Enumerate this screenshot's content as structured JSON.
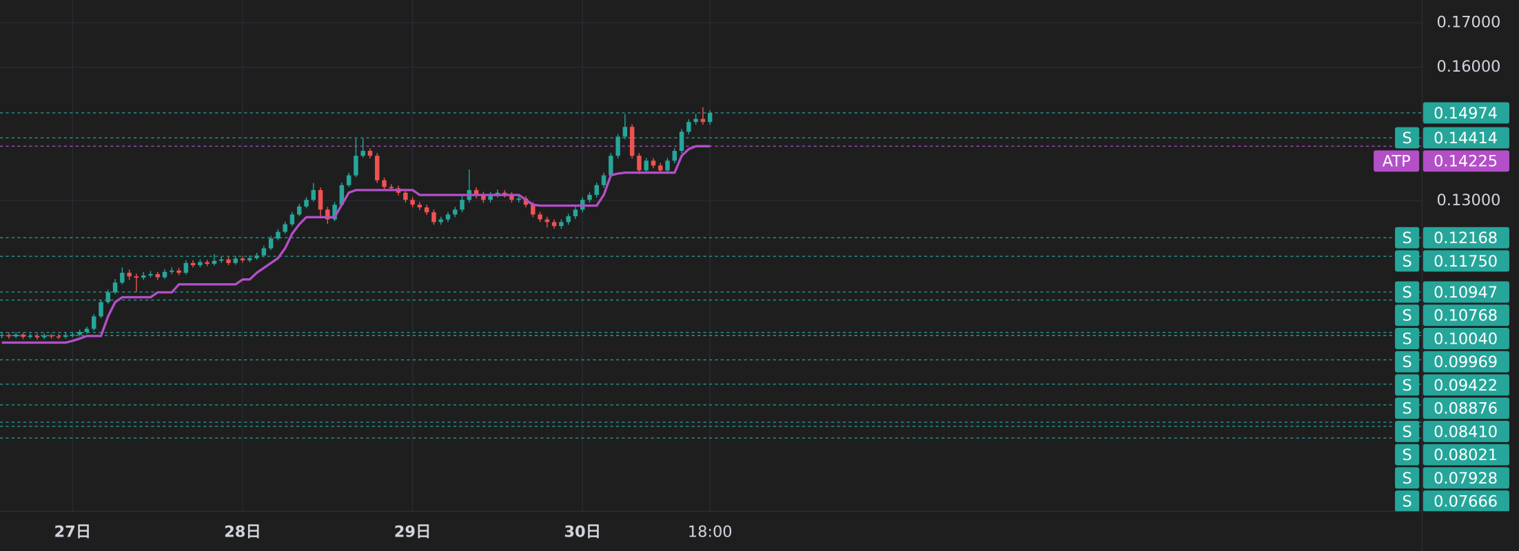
{
  "chart_data": {
    "type": "candlestick",
    "categories": [
      null,
      null,
      null,
      null,
      null,
      null,
      null,
      null,
      null,
      null,
      "27日",
      null,
      null,
      null,
      null,
      null,
      null,
      null,
      null,
      null,
      null,
      null,
      null,
      null,
      null,
      null,
      null,
      null,
      null,
      null,
      null,
      null,
      null,
      null,
      "28日",
      null,
      null,
      null,
      null,
      null,
      null,
      null,
      null,
      null,
      null,
      null,
      null,
      null,
      null,
      null,
      null,
      null,
      null,
      null,
      null,
      null,
      null,
      null,
      "29日",
      null,
      null,
      null,
      null,
      null,
      null,
      null,
      null,
      null,
      null,
      null,
      null,
      null,
      null,
      null,
      null,
      null,
      null,
      null,
      null,
      null,
      null,
      null,
      "30日",
      null,
      null,
      null,
      null,
      null,
      null,
      null,
      null,
      null,
      null,
      null,
      null,
      null,
      null,
      null,
      null,
      null,
      "18:00"
    ],
    "open": [
      0.0996,
      0.0998,
      0.0995,
      0.0999,
      0.0994,
      0.0996,
      0.0993,
      0.0997,
      0.0995,
      0.0994,
      0.0998,
      0.0999,
      0.1005,
      0.1012,
      0.104,
      0.1072,
      0.1094,
      0.1116,
      0.1138,
      0.113,
      0.1127,
      0.1132,
      0.1135,
      0.1128,
      0.114,
      0.1143,
      0.1138,
      0.116,
      0.1155,
      0.1162,
      0.1158,
      0.1165,
      0.1168,
      0.116,
      0.117,
      0.1166,
      0.1171,
      0.1177,
      0.1193,
      0.1215,
      0.123,
      0.1247,
      0.1269,
      0.1287,
      0.1302,
      0.1324,
      0.128,
      0.1258,
      0.1291,
      0.1335,
      0.1357,
      0.1401,
      0.1412,
      0.1401,
      0.1346,
      0.1331,
      0.1328,
      0.1318,
      0.1302,
      0.1291,
      0.1285,
      0.1274,
      0.1252,
      0.1258,
      0.1269,
      0.128,
      0.1302,
      0.1324,
      0.1313,
      0.1302,
      0.1313,
      0.1318,
      0.1313,
      0.1302,
      0.1305,
      0.1291,
      0.1269,
      0.1258,
      0.1252,
      0.1243,
      0.1252,
      0.1265,
      0.128,
      0.1302,
      0.1313,
      0.1335,
      0.1357,
      0.1401,
      0.1444,
      0.1466,
      0.1401,
      0.1368,
      0.139,
      0.1379,
      0.1368,
      0.139,
      0.1412,
      0.1455,
      0.1477,
      0.1484,
      0.1477
    ],
    "high": [
      0.1004,
      0.1003,
      0.1004,
      0.1003,
      0.1001,
      0.1001,
      0.1002,
      0.1001,
      0.1,
      0.1003,
      0.1004,
      0.101,
      0.1017,
      0.1045,
      0.1078,
      0.11,
      0.1124,
      0.115,
      0.1145,
      0.1136,
      0.114,
      0.1142,
      0.114,
      0.1146,
      0.115,
      0.1149,
      0.1166,
      0.1166,
      0.1168,
      0.1167,
      0.118,
      0.1175,
      0.1174,
      0.1176,
      0.1175,
      0.1177,
      0.1183,
      0.1199,
      0.1221,
      0.1236,
      0.1253,
      0.1275,
      0.1293,
      0.1308,
      0.134,
      0.133,
      0.1286,
      0.1297,
      0.1341,
      0.1363,
      0.144,
      0.144,
      0.1418,
      0.1407,
      0.1352,
      0.1337,
      0.1334,
      0.1324,
      0.1308,
      0.1297,
      0.1291,
      0.128,
      0.1264,
      0.1275,
      0.1286,
      0.1315,
      0.137,
      0.133,
      0.132,
      0.132,
      0.1325,
      0.1324,
      0.1319,
      0.1311,
      0.1311,
      0.1297,
      0.1275,
      0.1264,
      0.1258,
      0.1258,
      0.1271,
      0.1286,
      0.1308,
      0.1319,
      0.1341,
      0.1363,
      0.1407,
      0.145,
      0.1495,
      0.1472,
      0.1407,
      0.1396,
      0.1396,
      0.1385,
      0.1396,
      0.1418,
      0.1461,
      0.1483,
      0.1495,
      0.151,
      0.1503
    ],
    "low": [
      0.0991,
      0.099,
      0.0991,
      0.0989,
      0.099,
      0.0988,
      0.0989,
      0.099,
      0.0989,
      0.099,
      0.0993,
      0.0995,
      0.1001,
      0.1008,
      0.1036,
      0.1068,
      0.109,
      0.1112,
      0.1122,
      0.1095,
      0.1122,
      0.1127,
      0.1122,
      0.1124,
      0.1135,
      0.1133,
      0.1134,
      0.115,
      0.115,
      0.1153,
      0.1154,
      0.116,
      0.1155,
      0.1156,
      0.1161,
      0.1162,
      0.1167,
      0.1173,
      0.1189,
      0.1211,
      0.1226,
      0.1243,
      0.1265,
      0.1283,
      0.1298,
      0.126,
      0.1248,
      0.1254,
      0.1287,
      0.1331,
      0.1353,
      0.1397,
      0.1395,
      0.134,
      0.1325,
      0.1322,
      0.1312,
      0.1296,
      0.1285,
      0.1279,
      0.1268,
      0.1246,
      0.1246,
      0.1252,
      0.1263,
      0.1274,
      0.1296,
      0.1305,
      0.1295,
      0.1296,
      0.1307,
      0.1307,
      0.1296,
      0.1296,
      0.1285,
      0.1263,
      0.1252,
      0.124,
      0.1237,
      0.1237,
      0.1246,
      0.1259,
      0.1274,
      0.1296,
      0.1307,
      0.1329,
      0.1351,
      0.1395,
      0.1438,
      0.1395,
      0.136,
      0.1362,
      0.1373,
      0.1362,
      0.1362,
      0.1384,
      0.1406,
      0.1449,
      0.1471,
      0.1471,
      0.1471
    ],
    "close": [
      0.0998,
      0.0995,
      0.0999,
      0.0994,
      0.0996,
      0.0993,
      0.0997,
      0.0995,
      0.0994,
      0.0998,
      0.0999,
      0.1005,
      0.1012,
      0.104,
      0.1072,
      0.1094,
      0.1116,
      0.1138,
      0.113,
      0.1127,
      0.1132,
      0.1135,
      0.1128,
      0.114,
      0.1143,
      0.1138,
      0.116,
      0.1155,
      0.1162,
      0.1158,
      0.1165,
      0.1168,
      0.116,
      0.117,
      0.1166,
      0.1171,
      0.1177,
      0.1193,
      0.1215,
      0.123,
      0.1247,
      0.1269,
      0.1287,
      0.1302,
      0.1324,
      0.128,
      0.1258,
      0.1291,
      0.1335,
      0.1357,
      0.1401,
      0.1412,
      0.1401,
      0.1346,
      0.1331,
      0.1328,
      0.1318,
      0.1302,
      0.1291,
      0.1285,
      0.1274,
      0.1252,
      0.1258,
      0.1269,
      0.128,
      0.1302,
      0.1324,
      0.1313,
      0.1302,
      0.1313,
      0.1318,
      0.1313,
      0.1302,
      0.1305,
      0.1291,
      0.1269,
      0.1258,
      0.1252,
      0.1243,
      0.1252,
      0.1265,
      0.128,
      0.1302,
      0.1313,
      0.1335,
      0.1357,
      0.1401,
      0.1444,
      0.1466,
      0.1401,
      0.1368,
      0.139,
      0.1379,
      0.1368,
      0.139,
      0.1412,
      0.1455,
      0.1477,
      0.1484,
      0.1477,
      0.14974
    ],
    "up_color": "#26a69a",
    "down_color": "#ef5350",
    "ylim": [
      0.0602,
      0.1751
    ],
    "yticks": [
      {
        "value": 0.17,
        "label": "0.17000"
      },
      {
        "value": 0.16,
        "label": "0.16000"
      },
      {
        "value": 0.13,
        "label": "0.13000"
      }
    ],
    "grid": true,
    "lines": [
      {
        "name": "ATP",
        "color": "#b44fc8",
        "value_label": "0.14225",
        "values": [
          0.0981,
          0.0981,
          0.0981,
          0.0981,
          0.0981,
          0.0981,
          0.0981,
          0.0981,
          0.0981,
          0.0981,
          0.0985,
          0.099,
          0.0996,
          0.0996,
          0.0996,
          0.104,
          0.1072,
          0.1083,
          0.1083,
          0.1083,
          0.1083,
          0.1083,
          0.1094,
          0.1094,
          0.1094,
          0.1112,
          0.1112,
          0.1112,
          0.1112,
          0.1112,
          0.1112,
          0.1112,
          0.1112,
          0.1112,
          0.1123,
          0.1123,
          0.1138,
          0.1149,
          0.116,
          0.1171,
          0.1193,
          0.1226,
          0.1247,
          0.1263,
          0.1263,
          0.1263,
          0.1263,
          0.1263,
          0.1291,
          0.1318,
          0.1324,
          0.1324,
          0.1324,
          0.1324,
          0.1324,
          0.1324,
          0.1324,
          0.1324,
          0.1324,
          0.1313,
          0.1313,
          0.1313,
          0.1313,
          0.1313,
          0.1313,
          0.1313,
          0.1313,
          0.1313,
          0.1313,
          0.1313,
          0.1313,
          0.1313,
          0.1313,
          0.1313,
          0.1302,
          0.1291,
          0.1289,
          0.1289,
          0.1289,
          0.1289,
          0.1289,
          0.1289,
          0.1289,
          0.1289,
          0.1289,
          0.1313,
          0.1357,
          0.1361,
          0.1363,
          0.1363,
          0.1363,
          0.1363,
          0.1363,
          0.1363,
          0.1363,
          0.1363,
          0.1401,
          0.1416,
          0.14225,
          0.14225,
          0.14225
        ]
      }
    ],
    "levels": {
      "tag": "S",
      "color": "#26a69a",
      "values": [
        0.14414,
        0.12168,
        0.1175,
        0.10947,
        0.10768,
        0.1004,
        0.09969,
        0.09422,
        0.08876,
        0.0841,
        0.08021,
        0.07928,
        0.07666
      ],
      "value_labels": [
        "0.14414",
        "0.12168",
        "0.11750",
        "0.10947",
        "0.10768",
        "0.10040",
        "0.09969",
        "0.09422",
        "0.08876",
        "0.08410",
        "0.08021",
        "0.07928",
        "0.07666"
      ]
    },
    "last_price": {
      "value": 0.14974,
      "label": "0.14974",
      "color": "#26a69a"
    }
  }
}
